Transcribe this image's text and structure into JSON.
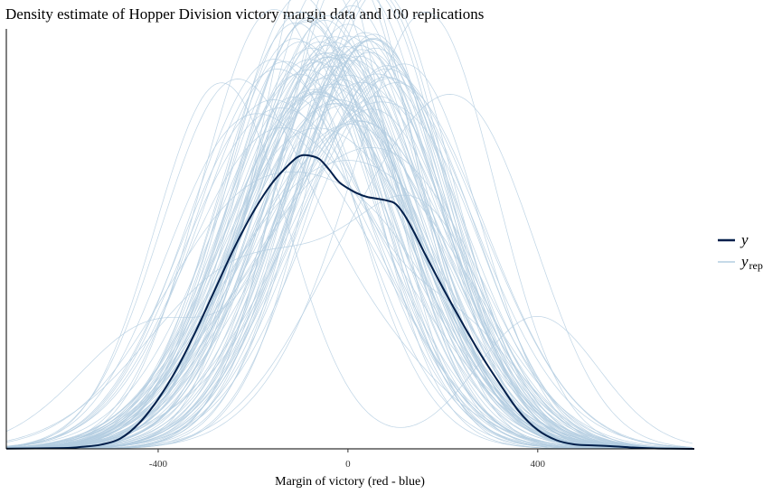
{
  "chart_data": {
    "type": "line",
    "title": "Density estimate of Hopper Division victory margin data and 100 replications",
    "xlabel": "Margin of victory (red - blue)",
    "ylabel": "",
    "xlim": [
      -720,
      730
    ],
    "ylim": [
      0,
      0.00245
    ],
    "xticks": [
      -400,
      0,
      400
    ],
    "xtick_labels": [
      "-400",
      "0",
      "400"
    ],
    "show_y_axis_ticks": false,
    "grid": false,
    "legend_position": "right",
    "legend": [
      {
        "label": "y",
        "subscript": "",
        "color": "#011f4b"
      },
      {
        "label": "y",
        "subscript": "rep",
        "color": "#b3cde0"
      }
    ],
    "observed": {
      "name": "y",
      "color": "#011f4b",
      "x": [
        -720,
        -600,
        -560,
        -520,
        -480,
        -440,
        -400,
        -360,
        -320,
        -280,
        -240,
        -200,
        -160,
        -120,
        -100,
        -80,
        -60,
        -40,
        -20,
        0,
        20,
        40,
        60,
        80,
        100,
        120,
        140,
        160,
        200,
        240,
        280,
        320,
        360,
        400,
        440,
        480,
        520,
        560,
        600,
        640,
        680,
        730
      ],
      "y": [
        1e-06,
        5e-06,
        1.2e-05,
        2.5e-05,
        6e-05,
        0.00015,
        0.00029,
        0.00047,
        0.00069,
        0.00093,
        0.00117,
        0.00138,
        0.00155,
        0.00167,
        0.00171,
        0.00171,
        0.00169,
        0.00163,
        0.00156,
        0.00152,
        0.00149,
        0.00147,
        0.00146,
        0.00145,
        0.00143,
        0.00136,
        0.00126,
        0.00115,
        0.00094,
        0.00074,
        0.00055,
        0.00038,
        0.00022,
        0.00011,
        5e-05,
        2.5e-05,
        2e-05,
        1.5e-05,
        8e-06,
        3e-06,
        1e-06,
        0.0
      ]
    },
    "replications": {
      "name": "y_rep",
      "color": "#b3cde0",
      "count": 100
    }
  }
}
